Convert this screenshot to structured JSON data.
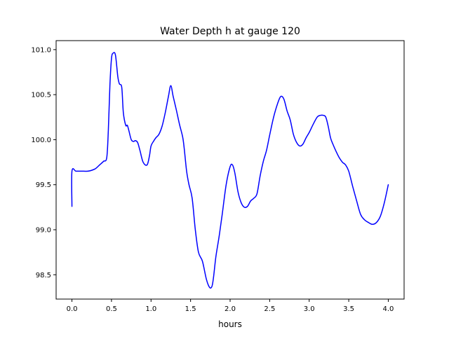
{
  "chart_data": {
    "type": "line",
    "title": "Water Depth h at gauge 120",
    "xlabel": "hours",
    "ylabel": "",
    "xlim": [
      -0.2,
      4.2
    ],
    "ylim": [
      98.23,
      101.1
    ],
    "x_ticks": [
      0.0,
      0.5,
      1.0,
      1.5,
      2.0,
      2.5,
      3.0,
      3.5,
      4.0
    ],
    "x_tick_labels": [
      "0.0",
      "0.5",
      "1.0",
      "1.5",
      "2.0",
      "2.5",
      "3.0",
      "3.5",
      "4.0"
    ],
    "y_ticks": [
      98.5,
      99.0,
      99.5,
      100.0,
      100.5,
      101.0
    ],
    "y_tick_labels": [
      "98.5",
      "99.0",
      "99.5",
      "100.0",
      "100.5",
      "101.0"
    ],
    "grid": false,
    "line_color": "#0000ff",
    "series": [
      {
        "x": [
          0.0,
          0.0,
          0.05,
          0.1,
          0.15,
          0.2,
          0.25,
          0.3,
          0.35,
          0.4,
          0.44,
          0.46,
          0.48,
          0.5,
          0.52,
          0.55,
          0.58,
          0.6,
          0.63,
          0.65,
          0.68,
          0.7,
          0.72,
          0.75,
          0.78,
          0.8,
          0.83,
          0.86,
          0.9,
          0.95,
          0.98,
          1.0,
          1.03,
          1.06,
          1.1,
          1.14,
          1.18,
          1.22,
          1.25,
          1.28,
          1.32,
          1.36,
          1.4,
          1.42,
          1.45,
          1.48,
          1.52,
          1.56,
          1.6,
          1.65,
          1.7,
          1.74,
          1.77,
          1.79,
          1.82,
          1.86,
          1.9,
          1.95,
          2.0,
          2.03,
          2.06,
          2.1,
          2.14,
          2.18,
          2.22,
          2.26,
          2.3,
          2.34,
          2.38,
          2.42,
          2.46,
          2.5,
          2.55,
          2.6,
          2.64,
          2.68,
          2.72,
          2.76,
          2.8,
          2.84,
          2.88,
          2.92,
          2.96,
          3.0,
          3.05,
          3.1,
          3.14,
          3.18,
          3.21,
          3.24,
          3.27,
          3.3,
          3.34,
          3.38,
          3.42,
          3.46,
          3.5,
          3.55,
          3.6,
          3.65,
          3.7,
          3.75,
          3.8,
          3.85,
          3.9,
          3.95,
          4.0
        ],
        "y": [
          99.26,
          99.65,
          99.65,
          99.65,
          99.65,
          99.65,
          99.66,
          99.68,
          99.72,
          99.76,
          99.8,
          100.1,
          100.6,
          100.9,
          100.96,
          100.94,
          100.7,
          100.62,
          100.58,
          100.3,
          100.16,
          100.16,
          100.1,
          100.0,
          99.98,
          99.99,
          99.97,
          99.88,
          99.75,
          99.72,
          99.82,
          99.93,
          99.98,
          100.02,
          100.06,
          100.15,
          100.3,
          100.48,
          100.6,
          100.48,
          100.33,
          100.17,
          100.03,
          99.9,
          99.65,
          99.5,
          99.35,
          99.0,
          98.75,
          98.65,
          98.45,
          98.36,
          98.37,
          98.47,
          98.7,
          98.92,
          99.17,
          99.5,
          99.7,
          99.72,
          99.63,
          99.42,
          99.3,
          99.25,
          99.26,
          99.32,
          99.35,
          99.4,
          99.6,
          99.76,
          99.88,
          100.05,
          100.25,
          100.4,
          100.48,
          100.45,
          100.32,
          100.22,
          100.06,
          99.97,
          99.93,
          99.95,
          100.02,
          100.08,
          100.17,
          100.25,
          100.27,
          100.27,
          100.25,
          100.15,
          100.02,
          99.95,
          99.87,
          99.8,
          99.75,
          99.72,
          99.65,
          99.48,
          99.32,
          99.17,
          99.11,
          99.08,
          99.06,
          99.08,
          99.15,
          99.3,
          99.5
        ]
      }
    ]
  }
}
